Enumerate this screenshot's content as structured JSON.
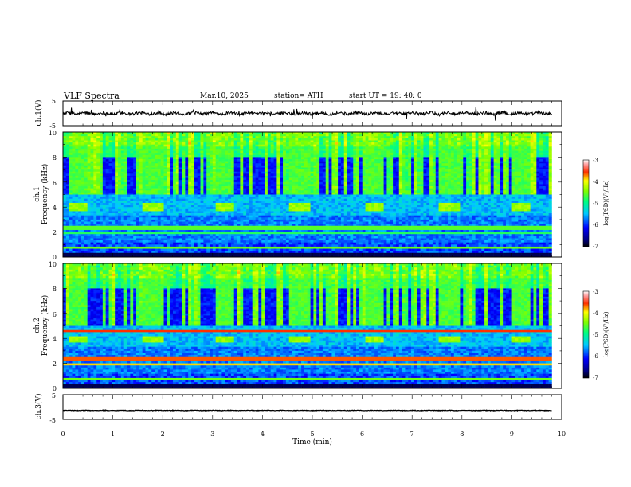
{
  "header": {
    "title": "VLF  Spectra",
    "date": "Mar.10, 2025",
    "station": "station= ATH",
    "start": "start  UT  =    19: 40: 0"
  },
  "chart_data": [
    {
      "type": "line",
      "ylabel": "ch.1(V)",
      "ylim": [
        -5,
        5
      ],
      "yticks": [
        5,
        -5
      ],
      "xlim": [
        0,
        10
      ],
      "baseline": 0,
      "amplitude": 1.2,
      "series": [
        {
          "color": "#000000"
        }
      ]
    },
    {
      "type": "heatmap",
      "ylabel_top": "ch.1",
      "ylabel": "Frequency  (kHz)",
      "xlim": [
        0,
        10
      ],
      "ylim": [
        0,
        10
      ],
      "yticks": [
        0,
        2,
        4,
        6,
        8,
        10
      ],
      "data_end_min": 9.8,
      "colorbar": {
        "label": "log(PSD)(V²/Hz)",
        "range": [
          -7,
          -3
        ],
        "ticks": [
          "-3",
          "-4",
          "-5",
          "-6",
          "-7"
        ]
      },
      "transmitter_bursts_min": [
        [
          0.1,
          0.5
        ],
        [
          1.6,
          2.0
        ],
        [
          3.05,
          3.45
        ],
        [
          4.55,
          4.95
        ],
        [
          6.05,
          6.45
        ],
        [
          7.55,
          7.95
        ],
        [
          9.0,
          9.4
        ]
      ],
      "burst_band_khz": [
        3.6,
        4.4
      ]
    },
    {
      "type": "heatmap",
      "ylabel_top": "ch.2",
      "ylabel": "Frequency  (kHz)",
      "xlim": [
        0,
        10
      ],
      "ylim": [
        0,
        10
      ],
      "yticks": [
        0,
        2,
        4,
        6,
        8,
        10
      ],
      "data_end_min": 9.8,
      "colorbar": {
        "label": "log(PSD)(V²/Hz)",
        "range": [
          -7,
          -3
        ],
        "ticks": [
          "-3",
          "-4",
          "-5",
          "-6",
          "-7"
        ]
      },
      "transmitter_bursts_min": [
        [
          0.1,
          0.5
        ],
        [
          1.6,
          2.0
        ],
        [
          3.05,
          3.45
        ],
        [
          4.55,
          4.95
        ],
        [
          6.05,
          6.45
        ],
        [
          7.55,
          7.95
        ],
        [
          9.0,
          9.4
        ]
      ],
      "burst_band_khz": [
        3.6,
        4.2
      ]
    },
    {
      "type": "line",
      "ylabel": "ch.3(V)",
      "ylim": [
        -5,
        5
      ],
      "yticks": [
        5,
        -5
      ],
      "xlim": [
        0,
        10
      ],
      "baseline": -1.5,
      "amplitude": 0.2,
      "xlabel": "Time  (min)",
      "xticks": [
        0,
        1,
        2,
        3,
        4,
        5,
        6,
        7,
        8,
        9,
        10
      ],
      "series": [
        {
          "color": "#000000"
        }
      ]
    }
  ]
}
